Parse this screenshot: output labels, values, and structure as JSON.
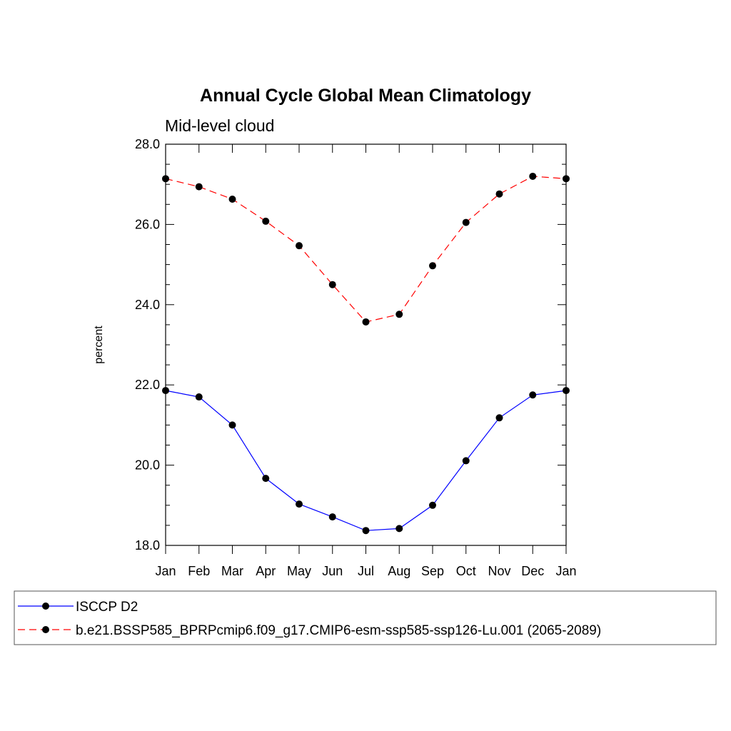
{
  "chart_data": {
    "type": "line",
    "title": "Annual Cycle Global Mean Climatology",
    "subtitle": "Mid-level cloud",
    "xlabel": "",
    "ylabel": "percent",
    "ylim": [
      18.0,
      28.0
    ],
    "y_ticks": [
      "18.0",
      "20.0",
      "22.0",
      "24.0",
      "26.0",
      "28.0"
    ],
    "y_tick_values": [
      18,
      20,
      22,
      24,
      26,
      28
    ],
    "categories": [
      "Jan",
      "Feb",
      "Mar",
      "Apr",
      "May",
      "Jun",
      "Jul",
      "Aug",
      "Sep",
      "Oct",
      "Nov",
      "Dec",
      "Jan"
    ],
    "grid": false,
    "legend_position": "bottom",
    "series": [
      {
        "name": "ISCCP D2",
        "color": "#0000ff",
        "line_style": "solid",
        "marker": "filled-circle",
        "values": [
          21.86,
          21.7,
          21.0,
          19.67,
          19.03,
          18.71,
          18.37,
          18.42,
          19.0,
          20.11,
          21.18,
          21.75,
          21.86
        ]
      },
      {
        "name": "b.e21.BSSP585_BPRPcmip6.f09_g17.CMIP6-esm-ssp585-ssp126-Lu.001 (2065-2089)",
        "color": "#ff0000",
        "line_style": "dashed",
        "marker": "filled-circle",
        "values": [
          27.14,
          26.94,
          26.63,
          26.08,
          25.47,
          24.5,
          23.57,
          23.76,
          24.97,
          26.05,
          26.76,
          27.2,
          27.14
        ]
      }
    ]
  }
}
